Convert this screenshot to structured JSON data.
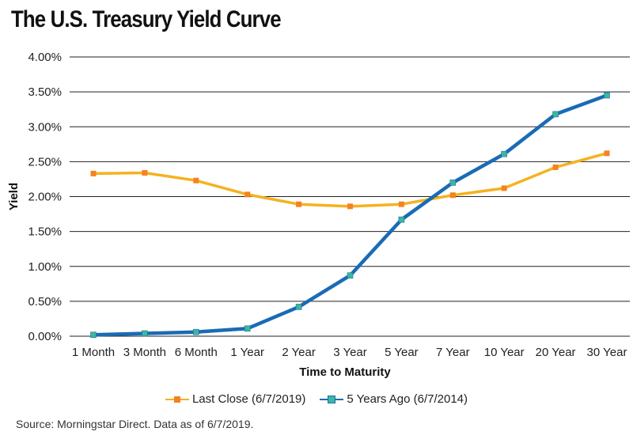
{
  "title": "The U.S. Treasury Yield Curve",
  "source": "Source: Morningstar Direct. Data as of 6/7/2019.",
  "chart_data": {
    "type": "line",
    "xlabel": "Time to Maturity",
    "ylabel": "Yield",
    "ylim": [
      0,
      4
    ],
    "yticks": [
      "0.00%",
      "0.50%",
      "1.00%",
      "1.50%",
      "2.00%",
      "2.50%",
      "3.00%",
      "3.50%",
      "4.00%"
    ],
    "grid": true,
    "legend_position": "bottom",
    "categories": [
      "1  Month",
      "3 Month",
      "6 Month",
      "1 Year",
      "2 Year",
      "3 Year",
      "5 Year",
      "7 Year",
      "10 Year",
      "20 Year",
      "30 Year"
    ],
    "series": [
      {
        "name": "Last Close (6/7/2019)",
        "color": "#f5b21f",
        "values": [
          2.33,
          2.34,
          2.23,
          2.03,
          1.89,
          1.86,
          1.89,
          2.02,
          2.12,
          2.42,
          2.62
        ]
      },
      {
        "name": "5 Years Ago (6/7/2014)",
        "color": "#1a6bb5",
        "marker_color": "#3cb89a",
        "values": [
          0.02,
          0.04,
          0.06,
          0.11,
          0.42,
          0.87,
          1.67,
          2.2,
          2.61,
          3.18,
          3.45
        ]
      }
    ]
  }
}
